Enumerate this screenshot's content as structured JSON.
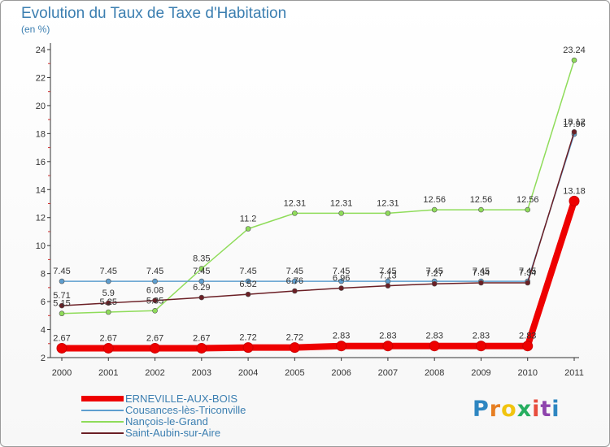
{
  "title": "Evolution du Taux de Taxe d'Habitation",
  "subtitle": "(en %)",
  "logo": {
    "text": "Proxiti",
    "letter_colors": [
      "#2e86c1",
      "#e67e22",
      "#f1c40f",
      "#27ae60",
      "#e74c3c",
      "#8e44ad",
      "#2e86c1"
    ]
  },
  "chart_data": {
    "type": "line",
    "x": [
      "2000",
      "2001",
      "2002",
      "2003",
      "2004",
      "2005",
      "2006",
      "2007",
      "2008",
      "2009",
      "2010",
      "2011"
    ],
    "ylim": [
      2,
      24
    ],
    "yticks": [
      2,
      4,
      6,
      8,
      10,
      12,
      14,
      16,
      18,
      20,
      22,
      24
    ],
    "grid": false,
    "legend_position": "bottom-left",
    "series": [
      {
        "name": "ERNEVILLE-AUX-BOIS",
        "color": "#ee0000",
        "values": [
          2.67,
          2.67,
          2.67,
          2.67,
          2.72,
          2.72,
          2.83,
          2.83,
          2.83,
          2.83,
          2.83,
          13.18
        ],
        "labels": [
          "2.67",
          "2.67",
          "2.67",
          "2.67",
          "2.72",
          "2.72",
          "2.83",
          "2.83",
          "2.83",
          "2.83",
          "2.83",
          "13.18"
        ]
      },
      {
        "name": "Cousances-lès-Triconville",
        "color": "#5e9ecf",
        "values": [
          7.45,
          7.45,
          7.45,
          7.45,
          7.45,
          7.45,
          7.45,
          7.45,
          7.45,
          7.45,
          7.45,
          17.96
        ],
        "labels": [
          "7.45",
          "7.45",
          "7.45",
          "7.45",
          "7.45",
          "7.45",
          "7.45",
          "7.45",
          "7.45",
          "7.45",
          "7.45",
          "17.96"
        ]
      },
      {
        "name": "Nançois-le-Grand",
        "color": "#8fdc5a",
        "values": [
          5.15,
          5.25,
          5.35,
          8.35,
          11.2,
          12.31,
          12.31,
          12.31,
          12.56,
          12.56,
          12.56,
          23.24
        ],
        "labels": [
          "5.15",
          "5.25",
          "5.35",
          "8.35",
          "11.2",
          "12.31",
          "12.31",
          "12.31",
          "12.56",
          "12.56",
          "12.56",
          "23.24"
        ]
      },
      {
        "name": "Saint-Aubin-sur-Aire",
        "color": "#6b1f25",
        "values": [
          5.71,
          5.9,
          6.08,
          6.29,
          6.52,
          6.76,
          6.96,
          7.13,
          7.27,
          7.34,
          7.34,
          18.12
        ],
        "labels": [
          "5.71",
          "5.9",
          "6.08",
          "6.29",
          "6.52",
          "6.76",
          "6.96",
          "7.13",
          "7.27",
          "7.34",
          "7.34",
          "18.12"
        ]
      }
    ]
  }
}
